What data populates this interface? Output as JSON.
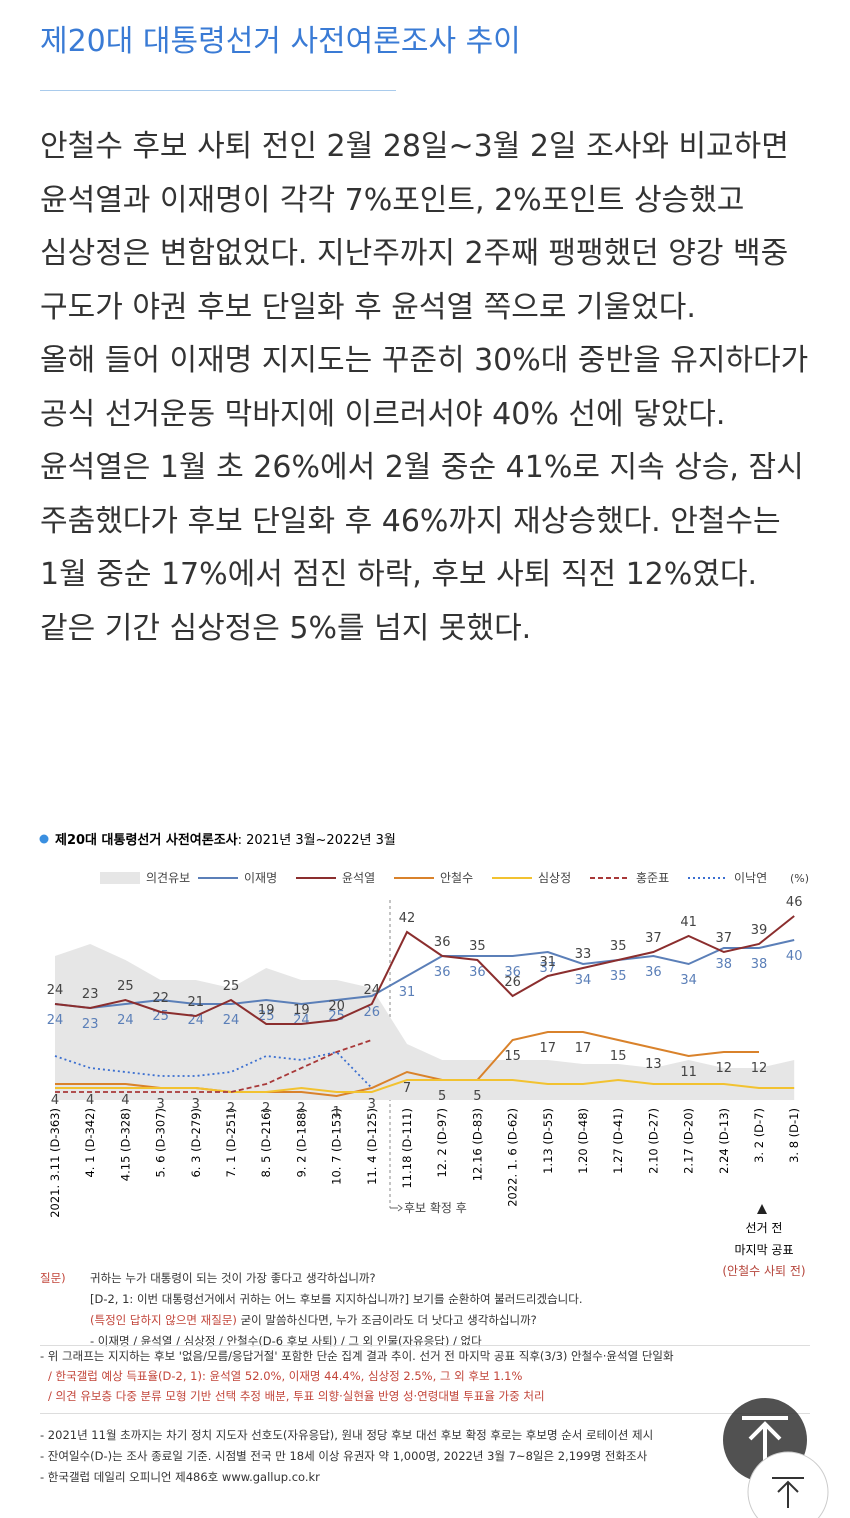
{
  "header": {
    "title": "제20대 대통령선거 사전여론조사 추이"
  },
  "paragraphs": [
    "안철수 후보 사퇴 전인 2월 28일~3월 2일 조사와 비교하면 윤석열과 이재명이 각각 7%포인트, 2%포인트 상승했고 심상정은 변함없었다. 지난주까지 2주째 팽팽했던 양강 백중 구도가 야권 후보 단일화 후 윤석열 쪽으로 기울었다.",
    "올해 들어 이재명 지지도는 꾸준히 30%대 중반을 유지하다가 공식 선거운동 막바지에 이르러서야 40% 선에 닿았다. 윤석열은 1월 초 26%에서 2월 중순 41%로 지속 상승, 잠시 주춤했다가 후보 단일화 후 46%까지 재상승했다. 안철수는 1월 중순 17%에서 점진 하락, 후보 사퇴 직전 12%였다. 같은 기간 심상정은 5%를 넘지 못했다."
  ],
  "chart_data": {
    "type": "line",
    "title": "제20대 대통령선거 사전여론조사",
    "subtitle": ": 2021년 3월~2022년 3월",
    "unit": "(%)",
    "categories": [
      "2021. 3.11 (D-363)",
      "4. 1 (D-342)",
      "4.15 (D-328)",
      "5. 6 (D-307)",
      "6. 3 (D-279)",
      "7. 1 (D-251)",
      "8. 5 (D-216)",
      "9. 2 (D-188)",
      "10. 7 (D-153)",
      "11. 4 (D-125)",
      "11.18 (D-111)",
      "12. 2 (D-97)",
      "12.16 (D-83)",
      "2022. 1. 6 (D-62)",
      "1.13 (D-55)",
      "1.20 (D-48)",
      "1.27 (D-41)",
      "2.10 (D-27)",
      "2.17 (D-20)",
      "2.24 (D-13)",
      "3. 2 (D-7)",
      "3. 8 (D-1)"
    ],
    "ylim": [
      0,
      50
    ],
    "series": [
      {
        "name": "의견유보",
        "color": "#e6e6e6",
        "style": "area",
        "values": [
          36,
          39,
          35,
          30,
          30,
          28,
          33,
          30,
          30,
          28,
          14,
          10,
          10,
          10,
          10,
          9,
          9,
          8,
          10,
          8,
          8,
          10
        ]
      },
      {
        "name": "이재명",
        "color": "#5b7fb8",
        "style": "solid",
        "labels": "below",
        "values": [
          24,
          23,
          24,
          25,
          24,
          24,
          25,
          24,
          25,
          26,
          31,
          36,
          36,
          36,
          37,
          34,
          35,
          36,
          34,
          38,
          38,
          40
        ]
      },
      {
        "name": "윤석열",
        "color": "#8b2e2e",
        "style": "solid",
        "labels": "above",
        "values": [
          24,
          23,
          25,
          22,
          21,
          25,
          19,
          19,
          20,
          24,
          42,
          36,
          35,
          26,
          31,
          33,
          35,
          37,
          41,
          37,
          39,
          46
        ]
      },
      {
        "name": "안철수",
        "color": "#d9822b",
        "style": "solid",
        "labels": "below",
        "values": [
          4,
          4,
          4,
          3,
          3,
          2,
          2,
          2,
          1,
          3,
          7,
          5,
          5,
          15,
          17,
          17,
          15,
          13,
          11,
          12,
          12,
          null
        ]
      },
      {
        "name": "심상정",
        "color": "#f2c230",
        "style": "solid",
        "values": [
          3,
          3,
          3,
          3,
          3,
          2,
          2,
          3,
          2,
          2,
          5,
          5,
          5,
          5,
          4,
          4,
          5,
          4,
          4,
          4,
          3,
          3
        ]
      },
      {
        "name": "홍준표",
        "color": "#a83838",
        "style": "dashed",
        "values": [
          2,
          2,
          2,
          2,
          2,
          2,
          4,
          8,
          12,
          15,
          null,
          null,
          null,
          null,
          null,
          null,
          null,
          null,
          null,
          null,
          null,
          null
        ]
      },
      {
        "name": "이낙연",
        "color": "#3b6fd0",
        "style": "dotted",
        "values": [
          11,
          8,
          7,
          6,
          6,
          7,
          11,
          10,
          12,
          3,
          null,
          null,
          null,
          null,
          null,
          null,
          null,
          null,
          null,
          null,
          null,
          null
        ]
      }
    ],
    "annotations": {
      "nominee": "후보 확정 후",
      "last_poll": [
        "선거 전",
        "마지막 공표"
      ],
      "last_poll_note": "(안철수 사퇴 전)"
    }
  },
  "question": {
    "label": "질문)",
    "lines": [
      "귀하는 누가 대통령이 되는 것이 가장 좋다고 생각하십니까?",
      "[D-2, 1: 이번 대통령선거에서 귀하는 어느 후보를 지지하십니까?] 보기를 순환하여 불러드리겠습니다."
    ],
    "followup_label": "(특정인 답하지 않으면 재질문)",
    "followup": "굳이 말씀하신다면, 누가 조금이라도 더 낫다고 생각하십니까?",
    "options": "- 이재명 / 윤석열 / 심상정 / 안철수(D-6 후보 사퇴) / 그 외 인물(자유응답) / 없다"
  },
  "notes": [
    "- 위 그래프는 지지하는 후보 '없음/모름/응답거절' 포함한 단순 집계 결과 추이. 선거 전 마지막 공표 직후(3/3) 안철수·윤석열 단일화",
    "/ 한국갤럽 예상 득표율(D-2, 1): 윤석열 52.0%, 이재명 44.4%, 심상정 2.5%, 그 외 후보 1.1%",
    "/ 의견 유보층 다중 분류 모형 기반 선택 추정 배분, 투표 의향·실현율 반영 성·연령대별 투표율 가중 처리",
    "- 2021년 11월 초까지는 차기 정치 지도자 선호도(자유응답), 원내 정당 후보 대선 후보 확정 후로는 후보명 순서 로테이션 제시",
    "- 잔여일수(D-)는 조사 종료일 기준. 시점별 전국 만 18세 이상 유권자 약 1,000명, 2022년 3월 7~8일은 2,199명 전화조사",
    "- 한국갤럽 데일리 오피니언 제486호 www.gallup.co.kr"
  ]
}
